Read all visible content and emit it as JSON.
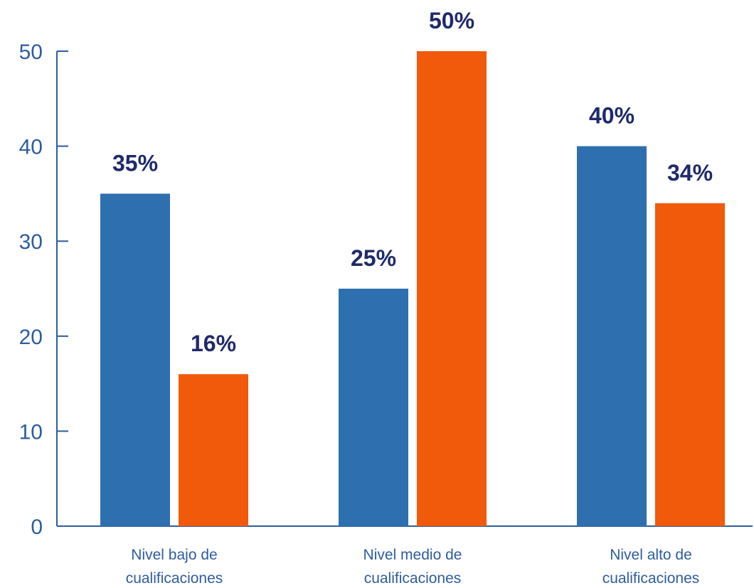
{
  "chart_data": {
    "type": "bar",
    "categories": [
      [
        "Nivel bajo de",
        "cualificaciones"
      ],
      [
        "Nivel medio de",
        "cualificaciones"
      ],
      [
        "Nivel alto de",
        "cualificaciones"
      ]
    ],
    "series": [
      {
        "values": [
          35,
          25,
          40
        ],
        "labels": [
          "35%",
          "25%",
          "40%"
        ],
        "color": "#2e6fb0"
      },
      {
        "values": [
          16,
          50,
          34
        ],
        "labels": [
          "16%",
          "50%",
          "34%"
        ],
        "color": "#f05a0a"
      }
    ],
    "yticks": [
      0,
      10,
      20,
      30,
      40,
      50
    ],
    "ylim": [
      0,
      50
    ],
    "title": "",
    "xlabel": "",
    "ylabel": "",
    "grid": false,
    "colors": {
      "axis": "#2d5d9f",
      "label": "#1f2a6b"
    }
  }
}
